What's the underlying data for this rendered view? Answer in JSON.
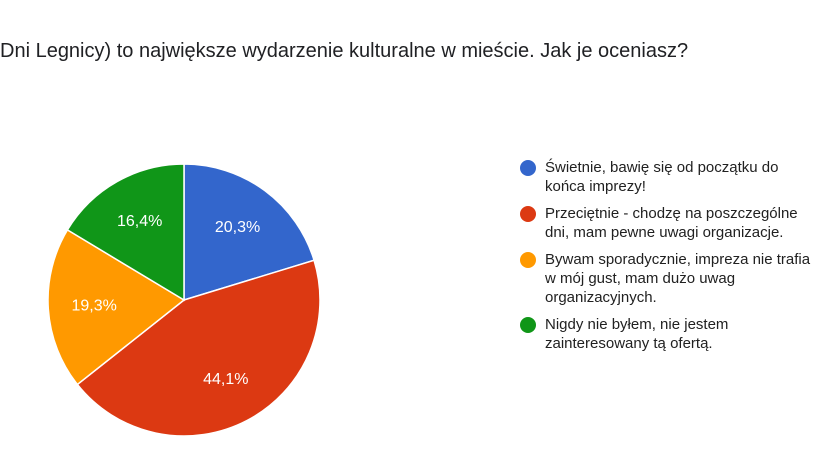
{
  "title": "Dni Legnicy) to największe wydarzenie kulturalne w mieście. Jak je oceniasz?",
  "chart_data": {
    "type": "pie",
    "series": [
      {
        "name": "Świetnie, bawię się od początku do końca imprezy!",
        "value": 20.3,
        "label": "20,3%",
        "color": "#3366cc",
        "legend_lines": [
          "Świetnie, bawię się od początku do",
          "końca imprezy!"
        ]
      },
      {
        "name": "Przeciętnie - chodzę na poszczególne dni, mam pewne uwagi organizacje.",
        "value": 44.1,
        "label": "44,1%",
        "color": "#dc3912",
        "legend_lines": [
          "Przeciętnie - chodzę na poszczególne",
          "dni, mam pewne uwagi organizacje."
        ]
      },
      {
        "name": "Bywam sporadycznie, impreza nie trafia w mój gust, mam dużo uwag organizacyjnych.",
        "value": 19.3,
        "label": "19,3%",
        "color": "#ff9900",
        "legend_lines": [
          "Bywam sporadycznie, impreza nie trafia",
          "w mój gust, mam dużo uwag",
          "organizacyjnych."
        ]
      },
      {
        "name": "Nigdy nie byłem, nie jestem zainteresowany tą ofertą.",
        "value": 16.4,
        "label": "16,4%",
        "color": "#109618",
        "legend_lines": [
          "Nigdy nie byłem, nie jestem",
          "zainteresowany tą ofertą."
        ]
      }
    ],
    "legend_position": "right"
  }
}
